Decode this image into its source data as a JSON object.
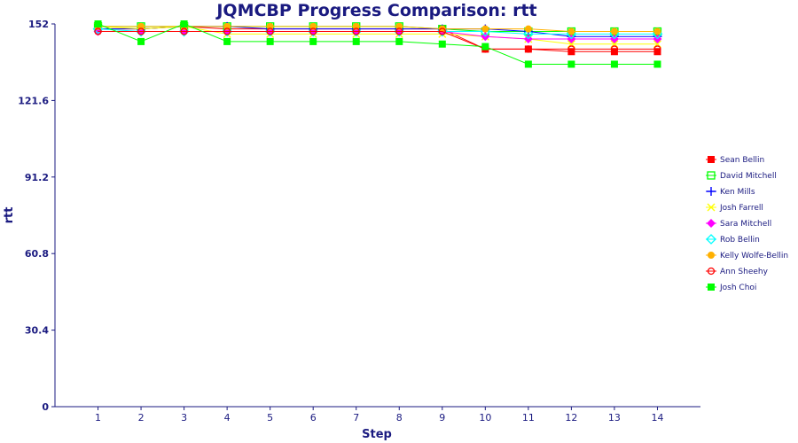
{
  "chart_data": {
    "type": "line",
    "title": "JQMCBP Progress Comparison: rtt",
    "xlabel": "Step",
    "ylabel": "rtt",
    "x": [
      1,
      2,
      3,
      4,
      5,
      6,
      7,
      8,
      9,
      10,
      11,
      12,
      13,
      14
    ],
    "xlim": [
      0,
      15
    ],
    "ylim": [
      0,
      152
    ],
    "yticks": [
      0,
      30.4,
      60.8,
      91.2,
      121.6,
      152
    ],
    "ytick_labels": [
      "0",
      "30.4",
      "60.8",
      "91.2",
      "121.6",
      "152"
    ],
    "legend_position": "right",
    "grid": false,
    "series": [
      {
        "name": "Sean Bellin",
        "color": "#ff0000",
        "marker": "square-filled",
        "values": [
          150,
          150,
          151,
          150,
          150,
          150,
          150,
          150,
          150,
          142,
          142,
          141,
          141,
          141
        ]
      },
      {
        "name": "David Mitchell",
        "color": "#00ff00",
        "marker": "square-open",
        "values": [
          151,
          151,
          151,
          151,
          151,
          151,
          151,
          151,
          150,
          149,
          149,
          149,
          149,
          149
        ]
      },
      {
        "name": "Ken Mills",
        "color": "#0000ff",
        "marker": "plus",
        "values": [
          150,
          150,
          151,
          151,
          150,
          150,
          150,
          150,
          150,
          150,
          149,
          147,
          147,
          147
        ]
      },
      {
        "name": "Josh Farrell",
        "color": "#ffff00",
        "marker": "cross",
        "values": [
          151,
          150,
          151,
          148,
          148,
          148,
          148,
          148,
          148,
          147,
          146,
          144,
          144,
          144
        ]
      },
      {
        "name": "Sara Mitchell",
        "color": "#ff00ff",
        "marker": "diamond",
        "values": [
          149,
          149,
          149,
          149,
          149,
          149,
          149,
          149,
          149,
          147,
          146,
          146,
          146,
          146
        ]
      },
      {
        "name": "Rob Bellin",
        "color": "#00ffff",
        "marker": "diamond-open",
        "values": [
          150,
          149,
          149,
          149,
          149,
          149,
          149,
          149,
          149,
          149,
          148,
          148,
          148,
          148
        ]
      },
      {
        "name": "Kelly Wolfe-Bellin",
        "color": "#ffb000",
        "marker": "circle-filled",
        "values": [
          151,
          151,
          151,
          151,
          151,
          151,
          151,
          151,
          150,
          150,
          150,
          149,
          149,
          149
        ]
      },
      {
        "name": "Ann Sheehy",
        "color": "#ff0000",
        "marker": "circle-open",
        "values": [
          149,
          149,
          149,
          149,
          149,
          149,
          149,
          149,
          149,
          142,
          142,
          142,
          142,
          142
        ]
      },
      {
        "name": "Josh Choi",
        "color": "#00ff00",
        "marker": "square-filled",
        "values": [
          152,
          145,
          152,
          145,
          145,
          145,
          145,
          145,
          144,
          143,
          136,
          136,
          136,
          136
        ]
      }
    ]
  }
}
